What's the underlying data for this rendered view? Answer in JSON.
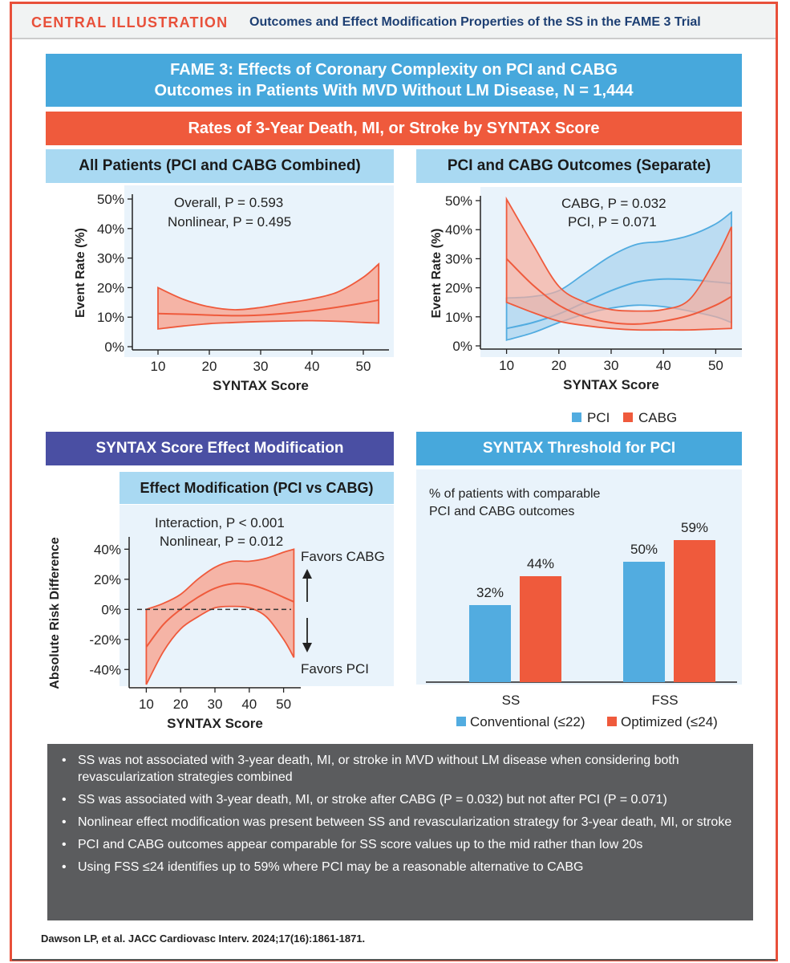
{
  "header": {
    "label": "CENTRAL ILLUSTRATION",
    "title": "Outcomes and Effect Modification Properties of the SS in the FAME 3 Trial"
  },
  "banner": {
    "line1": "FAME 3: Effects of Coronary Complexity on PCI and CABG",
    "line2": "Outcomes in Patients With MVD Without LM Disease, N = 1,444"
  },
  "section_title": "Rates of 3-Year Death, MI, or Stroke by SYNTAX Score",
  "panel_all": {
    "title": "All Patients (PCI and CABG Combined)",
    "annotation1": "Overall, P = 0.593",
    "annotation2": "Nonlinear, P = 0.495"
  },
  "panel_sep": {
    "title": "PCI and CABG Outcomes (Separate)",
    "annotation1": "CABG, P = 0.032",
    "annotation2": "PCI, P = 0.071",
    "legend_pci": "PCI",
    "legend_cabg": "CABG"
  },
  "panel_mod": {
    "section": "SYNTAX Score Effect Modification",
    "title": "Effect Modification (PCI vs CABG)",
    "annotation1": "Interaction, P < 0.001",
    "annotation2": "Nonlinear, P = 0.012",
    "favors_cabg": "Favors CABG",
    "favors_pci": "Favors PCI"
  },
  "panel_thr": {
    "title": "SYNTAX Threshold for PCI",
    "subtitle1": "% of patients with comparable",
    "subtitle2": "PCI and CABG outcomes",
    "legend_conv": "Conventional (≤22)",
    "legend_opt": "Optimized (≤24)"
  },
  "colors": {
    "pci": "#52ace0",
    "cabg": "#ef5a3c",
    "band_red": "#f6ad9c",
    "band_blue": "#a6d1ee"
  },
  "chart_data": [
    {
      "type": "area",
      "name_panel": "All Patients (PCI and CABG Combined)",
      "xlabel": "SYNTAX Score",
      "ylabel": "Event Rate (%)",
      "xlim": [
        5,
        55
      ],
      "ylim": [
        0,
        50
      ],
      "x_ticks": [
        10,
        20,
        30,
        40,
        50
      ],
      "y_ticks": [
        "0%",
        "10%",
        "20%",
        "30%",
        "40%",
        "50%"
      ],
      "series": [
        {
          "x": [
            10,
            15,
            20,
            25,
            30,
            35,
            40,
            45,
            50,
            53
          ],
          "estimate": [
            11.2,
            11,
            10.7,
            10.5,
            10.7,
            11.3,
            12.2,
            13.4,
            14.8,
            15.8
          ],
          "lower": [
            6,
            7,
            7.8,
            8.2,
            8.5,
            8.7,
            8.8,
            8.6,
            8.2,
            8
          ],
          "upper": [
            20,
            16,
            13.5,
            12.5,
            13.3,
            14.8,
            16.2,
            18.5,
            23.5,
            28
          ]
        }
      ]
    },
    {
      "type": "area",
      "name_panel": "PCI and CABG Outcomes (Separate)",
      "xlabel": "SYNTAX Score",
      "ylabel": "Event Rate (%)",
      "xlim": [
        5,
        55
      ],
      "ylim": [
        0,
        50
      ],
      "x_ticks": [
        10,
        20,
        30,
        40,
        50
      ],
      "y_ticks": [
        "0%",
        "10%",
        "20%",
        "30%",
        "40%",
        "50%"
      ],
      "series": [
        {
          "name": "PCI",
          "x": [
            10,
            15,
            20,
            25,
            30,
            35,
            40,
            45,
            50,
            53
          ],
          "estimate": [
            6,
            8,
            11,
            15,
            19,
            22,
            23,
            22.8,
            22,
            21.5
          ],
          "lower": [
            2,
            4.5,
            8,
            11,
            13,
            14,
            13.5,
            12,
            10,
            8
          ],
          "upper": [
            16.5,
            17,
            19,
            25,
            31,
            35,
            36,
            38,
            42,
            46
          ]
        },
        {
          "name": "CABG",
          "x": [
            10,
            15,
            20,
            25,
            30,
            35,
            40,
            45,
            50,
            53
          ],
          "estimate": [
            30,
            21,
            14,
            10,
            8,
            7.5,
            8.5,
            10.5,
            14,
            17
          ],
          "lower": [
            15,
            11.5,
            8.5,
            7,
            6,
            5.5,
            5.5,
            5.5,
            5.8,
            6
          ],
          "upper": [
            50.5,
            35,
            20.5,
            15,
            12.5,
            12,
            12.5,
            16,
            30,
            41
          ]
        }
      ]
    },
    {
      "type": "area",
      "name_panel": "Effect Modification (PCI vs CABG)",
      "xlabel": "SYNTAX Score",
      "ylabel": "Absolute Risk Difference",
      "xlim": [
        5,
        55
      ],
      "ylim": [
        -50,
        45
      ],
      "x_ticks": [
        10,
        20,
        30,
        40,
        50
      ],
      "y_ticks": [
        "-40%",
        "-20%",
        "0%",
        "20%",
        "40%"
      ],
      "series": [
        {
          "x": [
            10,
            15,
            20,
            25,
            30,
            35,
            40,
            45,
            50,
            53
          ],
          "estimate": [
            -25,
            -10,
            0,
            8,
            14,
            17,
            16.5,
            13,
            8,
            5
          ],
          "lower": [
            -50,
            -28,
            -13,
            -5,
            1,
            2,
            1,
            -5,
            -20,
            -32
          ],
          "upper": [
            0,
            4,
            10,
            20,
            28,
            32,
            32,
            34,
            38,
            40
          ]
        }
      ]
    },
    {
      "type": "bar",
      "name_panel": "SYNTAX Threshold for PCI",
      "categories": [
        "SS",
        "FSS"
      ],
      "series": [
        {
          "name": "Conventional (≤22)",
          "values": [
            32,
            50
          ]
        },
        {
          "name": "Optimized (≤24)",
          "values": [
            44,
            59
          ]
        }
      ],
      "data_labels": [
        [
          "32%",
          "44%"
        ],
        [
          "50%",
          "59%"
        ]
      ],
      "ylim": [
        0,
        75
      ]
    }
  ],
  "bullets": [
    "SS was not associated with 3-year death, MI, or stroke in MVD without LM disease when considering both revascularization strategies combined",
    "SS was associated with 3-year death, MI, or stroke after CABG (P = 0.032) but not after PCI (P = 0.071)",
    "Nonlinear effect modification was present between SS and revascularization strategy for 3-year death, MI, or stroke",
    "PCI and CABG outcomes appear comparable for SS score values up to the mid rather than low 20s",
    "Using FSS ≤24 identifies up to 59% where PCI may be a reasonable alternative to CABG"
  ],
  "citation": "Dawson LP, et al. JACC Cardiovasc Interv. 2024;17(16):1861-1871."
}
